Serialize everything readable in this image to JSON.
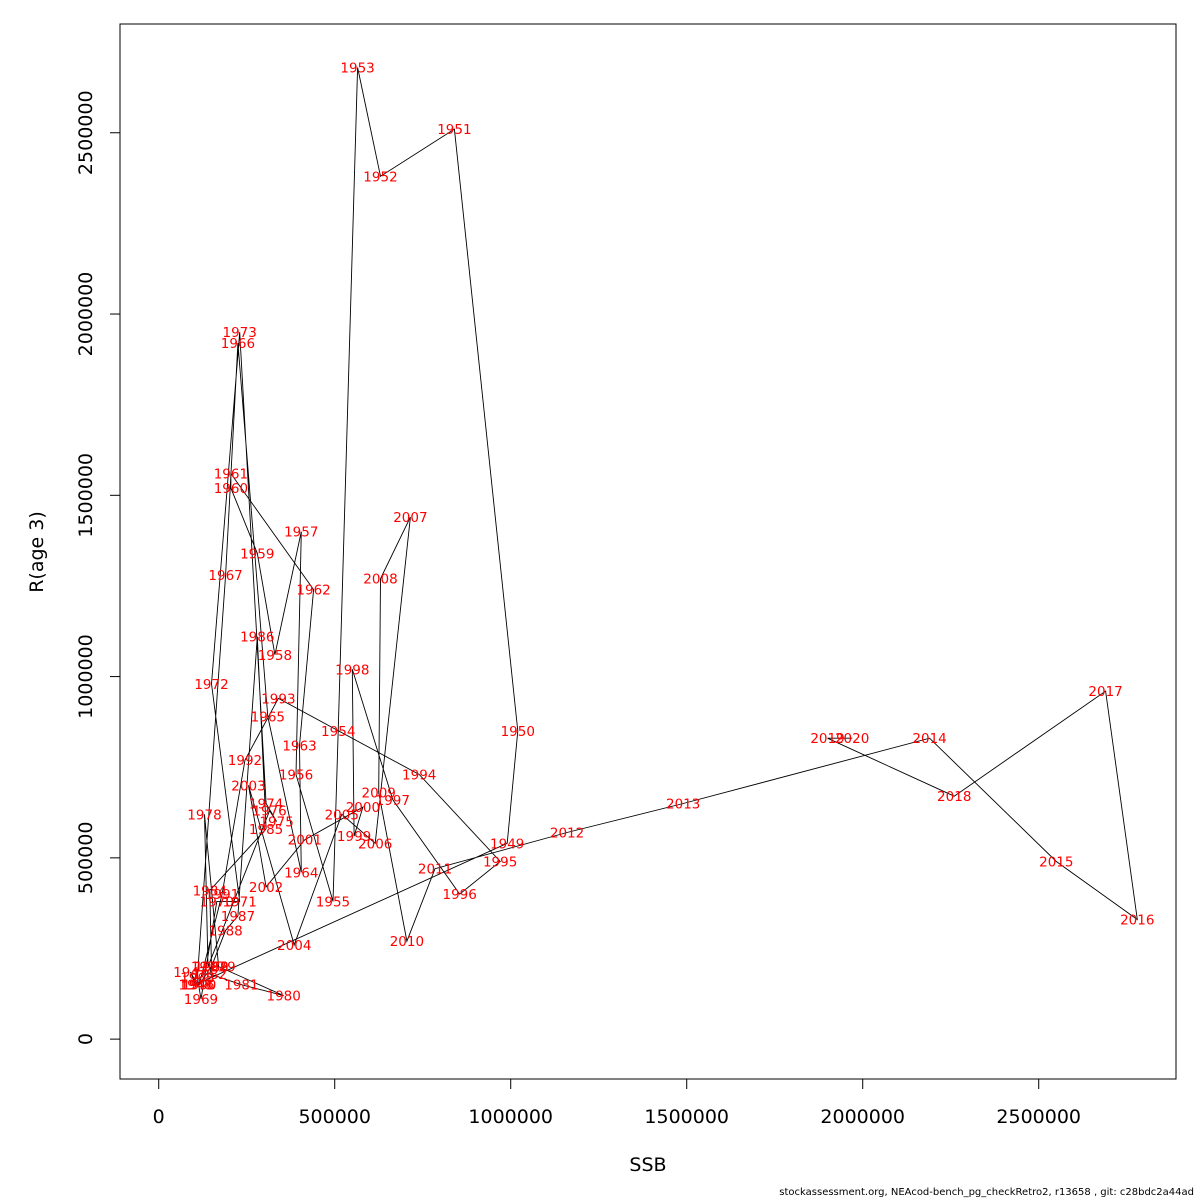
{
  "footer": "stockassessment.org, NEAcod-bench_pg_checkRetro2, r13658 , git: c28bdc2a44ad",
  "chart_data": {
    "type": "line",
    "xlabel": "SSB",
    "ylabel": "R(age 3)",
    "xlim": [
      -110000,
      2890000
    ],
    "ylim": [
      -110000,
      2800000
    ],
    "xticks": [
      0,
      500000,
      1000000,
      1500000,
      2000000,
      2500000
    ],
    "yticks": [
      0,
      500000,
      1000000,
      1500000,
      2000000,
      2500000
    ],
    "xtick_labels": [
      "0",
      "500000",
      "1000000",
      "1500000",
      "2000000",
      "2500000"
    ],
    "ytick_labels": [
      "0",
      "500000",
      "1000000",
      "1500000",
      "2000000",
      "2500000"
    ],
    "grid": false,
    "line_color": "#000000",
    "label_color": "#ff0000",
    "points": [
      {
        "year": "1946",
        "x": 110000,
        "y": 150000
      },
      {
        "year": "1947",
        "x": 90000,
        "y": 185000
      },
      {
        "year": "1948",
        "x": 105000,
        "y": 150000
      },
      {
        "year": "1949",
        "x": 990000,
        "y": 540000
      },
      {
        "year": "1950",
        "x": 1020000,
        "y": 850000
      },
      {
        "year": "1951",
        "x": 840000,
        "y": 2510000
      },
      {
        "year": "1952",
        "x": 630000,
        "y": 2380000
      },
      {
        "year": "1953",
        "x": 565000,
        "y": 2680000
      },
      {
        "year": "1954",
        "x": 510000,
        "y": 850000
      },
      {
        "year": "1955",
        "x": 495000,
        "y": 380000
      },
      {
        "year": "1956",
        "x": 390000,
        "y": 730000
      },
      {
        "year": "1957",
        "x": 405000,
        "y": 1400000
      },
      {
        "year": "1958",
        "x": 330000,
        "y": 1060000
      },
      {
        "year": "1959",
        "x": 280000,
        "y": 1340000
      },
      {
        "year": "1960",
        "x": 205000,
        "y": 1520000
      },
      {
        "year": "1961",
        "x": 205000,
        "y": 1560000
      },
      {
        "year": "1962",
        "x": 440000,
        "y": 1240000
      },
      {
        "year": "1963",
        "x": 400000,
        "y": 810000
      },
      {
        "year": "1964",
        "x": 405000,
        "y": 460000
      },
      {
        "year": "1965",
        "x": 310000,
        "y": 890000
      },
      {
        "year": "1966",
        "x": 225000,
        "y": 1920000
      },
      {
        "year": "1967",
        "x": 190000,
        "y": 1280000
      },
      {
        "year": "1968",
        "x": 110000,
        "y": 170000
      },
      {
        "year": "1969",
        "x": 120000,
        "y": 110000
      },
      {
        "year": "1970",
        "x": 165000,
        "y": 380000
      },
      {
        "year": "1971",
        "x": 230000,
        "y": 380000
      },
      {
        "year": "1972",
        "x": 150000,
        "y": 980000
      },
      {
        "year": "1973",
        "x": 230000,
        "y": 1950000
      },
      {
        "year": "1974",
        "x": 305000,
        "y": 650000
      },
      {
        "year": "1975",
        "x": 335000,
        "y": 600000
      },
      {
        "year": "1976",
        "x": 315000,
        "y": 630000
      },
      {
        "year": "1977",
        "x": 140000,
        "y": 200000
      },
      {
        "year": "1978",
        "x": 130000,
        "y": 620000
      },
      {
        "year": "1979",
        "x": 170000,
        "y": 200000
      },
      {
        "year": "1980",
        "x": 355000,
        "y": 120000
      },
      {
        "year": "1981",
        "x": 235000,
        "y": 150000
      },
      {
        "year": "1982",
        "x": 145000,
        "y": 180000
      },
      {
        "year": "1983",
        "x": 150000,
        "y": 200000
      },
      {
        "year": "1984",
        "x": 145000,
        "y": 410000
      },
      {
        "year": "1985",
        "x": 305000,
        "y": 580000
      },
      {
        "year": "1986",
        "x": 280000,
        "y": 1110000
      },
      {
        "year": "1987",
        "x": 225000,
        "y": 340000
      },
      {
        "year": "1988",
        "x": 190000,
        "y": 300000
      },
      {
        "year": "1989",
        "x": 150000,
        "y": 200000
      },
      {
        "year": "1990",
        "x": 115000,
        "y": 150000
      },
      {
        "year": "1991",
        "x": 180000,
        "y": 400000
      },
      {
        "year": "1992",
        "x": 245000,
        "y": 770000
      },
      {
        "year": "1993",
        "x": 340000,
        "y": 940000
      },
      {
        "year": "1994",
        "x": 740000,
        "y": 730000
      },
      {
        "year": "1995",
        "x": 970000,
        "y": 490000
      },
      {
        "year": "1996",
        "x": 855000,
        "y": 400000
      },
      {
        "year": "1997",
        "x": 665000,
        "y": 660000
      },
      {
        "year": "1998",
        "x": 550000,
        "y": 1020000
      },
      {
        "year": "1999",
        "x": 555000,
        "y": 560000
      },
      {
        "year": "2000",
        "x": 580000,
        "y": 640000
      },
      {
        "year": "2001",
        "x": 415000,
        "y": 550000
      },
      {
        "year": "2002",
        "x": 305000,
        "y": 420000
      },
      {
        "year": "2003",
        "x": 255000,
        "y": 700000
      },
      {
        "year": "2004",
        "x": 385000,
        "y": 260000
      },
      {
        "year": "2005",
        "x": 520000,
        "y": 620000
      },
      {
        "year": "2006",
        "x": 615000,
        "y": 540000
      },
      {
        "year": "2007",
        "x": 715000,
        "y": 1440000
      },
      {
        "year": "2008",
        "x": 630000,
        "y": 1270000
      },
      {
        "year": "2009",
        "x": 625000,
        "y": 680000
      },
      {
        "year": "2010",
        "x": 705000,
        "y": 270000
      },
      {
        "year": "2011",
        "x": 785000,
        "y": 470000
      },
      {
        "year": "2012",
        "x": 1160000,
        "y": 570000
      },
      {
        "year": "2013",
        "x": 1490000,
        "y": 650000
      },
      {
        "year": "2014",
        "x": 2190000,
        "y": 830000
      },
      {
        "year": "2015",
        "x": 2550000,
        "y": 490000
      },
      {
        "year": "2016",
        "x": 2780000,
        "y": 330000
      },
      {
        "year": "2017",
        "x": 2690000,
        "y": 960000
      },
      {
        "year": "2018",
        "x": 2260000,
        "y": 670000
      },
      {
        "year": "2019",
        "x": 1900000,
        "y": 830000
      },
      {
        "year": "2020",
        "x": 1970000,
        "y": 830000
      }
    ]
  }
}
